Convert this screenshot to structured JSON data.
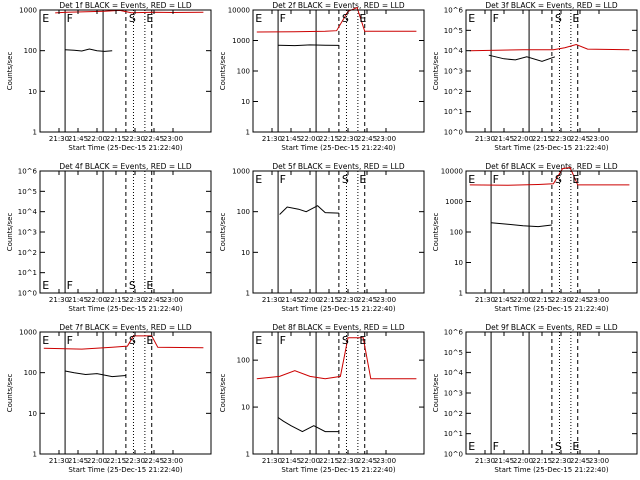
{
  "chart_data": [
    {
      "type": "line",
      "title": "Det 1f BLACK = Events, RED = LLD",
      "ylabel": "Counts/sec",
      "xlabel": "Start Time (25-Dec-15 21:22:40)",
      "xticks": [
        "21:30",
        "21:45",
        "22:00",
        "22:15",
        "22:30",
        "22:45",
        "23:00"
      ],
      "ytick_labels": [
        "1",
        "10",
        "100",
        "1000"
      ],
      "ylog": [
        0,
        3
      ],
      "flags": [
        "E",
        "F",
        "S",
        "E"
      ],
      "series": [
        {
          "color": "#000000",
          "values": [
            [
              21.58,
              105
            ],
            [
              21.7,
              102
            ],
            [
              21.8,
              98
            ],
            [
              21.9,
              110
            ],
            [
              22.0,
              100
            ],
            [
              22.1,
              96
            ],
            [
              22.2,
              100
            ]
          ]
        },
        {
          "color": "#cc0000",
          "values": [
            [
              21.45,
              850
            ],
            [
              21.6,
              880
            ],
            [
              21.8,
              900
            ],
            [
              22.1,
              930
            ],
            [
              22.3,
              980
            ],
            [
              22.45,
              860
            ],
            [
              22.6,
              870
            ],
            [
              22.75,
              880
            ],
            [
              23.0,
              870
            ],
            [
              23.4,
              880
            ]
          ]
        }
      ]
    },
    {
      "type": "line",
      "title": "Det 2f BLACK = Events, RED = LLD",
      "ylabel": "Counts/sec",
      "xlabel": "Start Time (25-Dec-15 21:22:40)",
      "xticks": [
        "21:30",
        "21:45",
        "22:00",
        "22:15",
        "22:30",
        "22:45",
        "23:00"
      ],
      "ytick_labels": [
        "1",
        "10",
        "100",
        "1000",
        "10000"
      ],
      "ylog": [
        0,
        4
      ],
      "flags": [
        "E",
        "F",
        "S",
        "E"
      ],
      "series": [
        {
          "color": "#000000",
          "values": [
            [
              21.58,
              700
            ],
            [
              21.8,
              680
            ],
            [
              22.0,
              720
            ],
            [
              22.2,
              700
            ],
            [
              22.38,
              690
            ]
          ]
        },
        {
          "color": "#cc0000",
          "values": [
            [
              21.3,
              1900
            ],
            [
              21.8,
              1950
            ],
            [
              22.2,
              2000
            ],
            [
              22.35,
              2100
            ],
            [
              22.5,
              9000
            ],
            [
              22.62,
              12000
            ],
            [
              22.72,
              2000
            ],
            [
              23.0,
              2000
            ],
            [
              23.4,
              2000
            ]
          ]
        }
      ]
    },
    {
      "type": "line",
      "title": "Det 3f BLACK = Events, RED = LLD",
      "ylabel": "Counts/sec",
      "xlabel": "Start Time (25-Dec-15 21:22:40)",
      "xticks": [
        "21:30",
        "21:45",
        "22:00",
        "22:15",
        "22:30",
        "22:45",
        "23:00"
      ],
      "ytick_labels": [
        "10^0",
        "10^1",
        "10^2",
        "10^3",
        "10^4",
        "10^5",
        "10^6"
      ],
      "ylog": [
        0,
        6
      ],
      "flags": [
        "E",
        "F",
        "S",
        "E"
      ],
      "series": [
        {
          "color": "#000000",
          "values": [
            [
              21.55,
              6000
            ],
            [
              21.75,
              4000
            ],
            [
              21.9,
              3500
            ],
            [
              22.05,
              5000
            ],
            [
              22.25,
              3000
            ],
            [
              22.42,
              5000
            ]
          ]
        },
        {
          "color": "#cc0000",
          "values": [
            [
              21.3,
              10000
            ],
            [
              22.0,
              11000
            ],
            [
              22.4,
              11000
            ],
            [
              22.55,
              14000
            ],
            [
              22.7,
              20000
            ],
            [
              22.85,
              12000
            ],
            [
              23.4,
              11000
            ]
          ]
        }
      ]
    },
    {
      "type": "line",
      "title": "Det 4f BLACK = Events, RED = LLD",
      "ylabel": "Counts/sec",
      "xlabel": "Start Time (25-Dec-15 21:22:40)",
      "xticks": [
        "21:30",
        "21:45",
        "22:00",
        "22:15",
        "22:30",
        "22:45",
        "23:00"
      ],
      "ytick_labels": [
        "10^0",
        "10^1",
        "10^2",
        "10^3",
        "10^4",
        "10^5",
        "10^6"
      ],
      "ylog": [
        0,
        6
      ],
      "flags": [
        "E",
        "F",
        "S",
        "E"
      ],
      "series": []
    },
    {
      "type": "line",
      "title": "Det 5f BLACK = Events, RED = LLD",
      "ylabel": "Counts/sec",
      "xlabel": "Start Time (25-Dec-15 21:22:40)",
      "xticks": [
        "21:30",
        "21:45",
        "22:00",
        "22:15",
        "22:30",
        "22:45",
        "23:00"
      ],
      "ytick_labels": [
        "1",
        "10",
        "100",
        "1000"
      ],
      "ylog": [
        0,
        3
      ],
      "flags": [
        "E",
        "F",
        "S",
        "E"
      ],
      "series": [
        {
          "color": "#000000",
          "values": [
            [
              21.6,
              85
            ],
            [
              21.7,
              130
            ],
            [
              21.85,
              115
            ],
            [
              21.95,
              100
            ],
            [
              22.1,
              140
            ],
            [
              22.2,
              95
            ],
            [
              22.38,
              92
            ]
          ]
        }
      ]
    },
    {
      "type": "line",
      "title": "Det 6f BLACK = Events, RED = LLD",
      "ylabel": "Counts/sec",
      "xlabel": "Start Time (25-Dec-15 21:22:40)",
      "xticks": [
        "21:30",
        "21:45",
        "22:00",
        "22:15",
        "22:30",
        "22:45",
        "23:00"
      ],
      "ytick_labels": [
        "1",
        "10",
        "100",
        "1000",
        "10000"
      ],
      "ylog": [
        0,
        4
      ],
      "flags": [
        "E",
        "F",
        "S",
        "E"
      ],
      "series": [
        {
          "color": "#000000",
          "values": [
            [
              21.58,
              200
            ],
            [
              21.8,
              180
            ],
            [
              22.0,
              160
            ],
            [
              22.2,
              150
            ],
            [
              22.38,
              170
            ]
          ]
        },
        {
          "color": "#cc0000",
          "values": [
            [
              21.3,
              3500
            ],
            [
              21.8,
              3400
            ],
            [
              22.2,
              3600
            ],
            [
              22.4,
              3800
            ],
            [
              22.52,
              12000
            ],
            [
              22.62,
              13000
            ],
            [
              22.72,
              3500
            ],
            [
              23.4,
              3500
            ]
          ]
        }
      ]
    },
    {
      "type": "line",
      "title": "Det 7f BLACK = Events, RED = LLD",
      "ylabel": "Counts/sec",
      "xlabel": "Start Time (25-Dec-15 21:22:40)",
      "xticks": [
        "21:30",
        "21:45",
        "22:00",
        "22:15",
        "22:30",
        "22:45",
        "23:00"
      ],
      "ytick_labels": [
        "1",
        "10",
        "100",
        "1000"
      ],
      "ylog": [
        0,
        3
      ],
      "flags": [
        "E",
        "F",
        "S",
        "E"
      ],
      "series": [
        {
          "color": "#000000",
          "values": [
            [
              21.58,
              110
            ],
            [
              21.7,
              100
            ],
            [
              21.85,
              90
            ],
            [
              22.0,
              95
            ],
            [
              22.2,
              80
            ],
            [
              22.38,
              85
            ]
          ]
        },
        {
          "color": "#cc0000",
          "values": [
            [
              21.3,
              400
            ],
            [
              21.8,
              380
            ],
            [
              22.2,
              420
            ],
            [
              22.4,
              450
            ],
            [
              22.48,
              800
            ],
            [
              22.72,
              800
            ],
            [
              22.8,
              420
            ],
            [
              23.4,
              410
            ]
          ]
        }
      ]
    },
    {
      "type": "line",
      "title": "Det 8f BLACK = Events, RED = LLD",
      "ylabel": "Counts/sec",
      "xlabel": "Start Time (25-Dec-15 21:22:40)",
      "xticks": [
        "21:30",
        "21:45",
        "22:00",
        "22:15",
        "22:30",
        "22:45",
        "23:00"
      ],
      "ytick_labels": [
        "1",
        "10",
        "100"
      ],
      "ylog": [
        0,
        2.6
      ],
      "flags": [
        "E",
        "F",
        "S",
        "E"
      ],
      "series": [
        {
          "color": "#000000",
          "values": [
            [
              21.58,
              6
            ],
            [
              21.65,
              5
            ],
            [
              21.75,
              4
            ],
            [
              21.9,
              3
            ],
            [
              22.05,
              4
            ],
            [
              22.2,
              3
            ],
            [
              22.38,
              3
            ]
          ]
        },
        {
          "color": "#cc0000",
          "values": [
            [
              21.3,
              40
            ],
            [
              21.6,
              45
            ],
            [
              21.8,
              60
            ],
            [
              22.0,
              45
            ],
            [
              22.2,
              40
            ],
            [
              22.4,
              45
            ],
            [
              22.5,
              300
            ],
            [
              22.7,
              300
            ],
            [
              22.8,
              40
            ],
            [
              23.4,
              40
            ]
          ]
        }
      ]
    },
    {
      "type": "line",
      "title": "Det 9f BLACK = Events, RED = LLD",
      "ylabel": "Counts/sec",
      "xlabel": "Start Time (25-Dec-15 21:22:40)",
      "xticks": [
        "21:30",
        "21:45",
        "22:00",
        "22:15",
        "22:30",
        "22:45",
        "23:00"
      ],
      "ytick_labels": [
        "10^0",
        "10^1",
        "10^2",
        "10^3",
        "10^4",
        "10^5",
        "10^6"
      ],
      "ylog": [
        0,
        6
      ],
      "flags": [
        "E",
        "F",
        "S",
        "E"
      ],
      "series": []
    }
  ]
}
